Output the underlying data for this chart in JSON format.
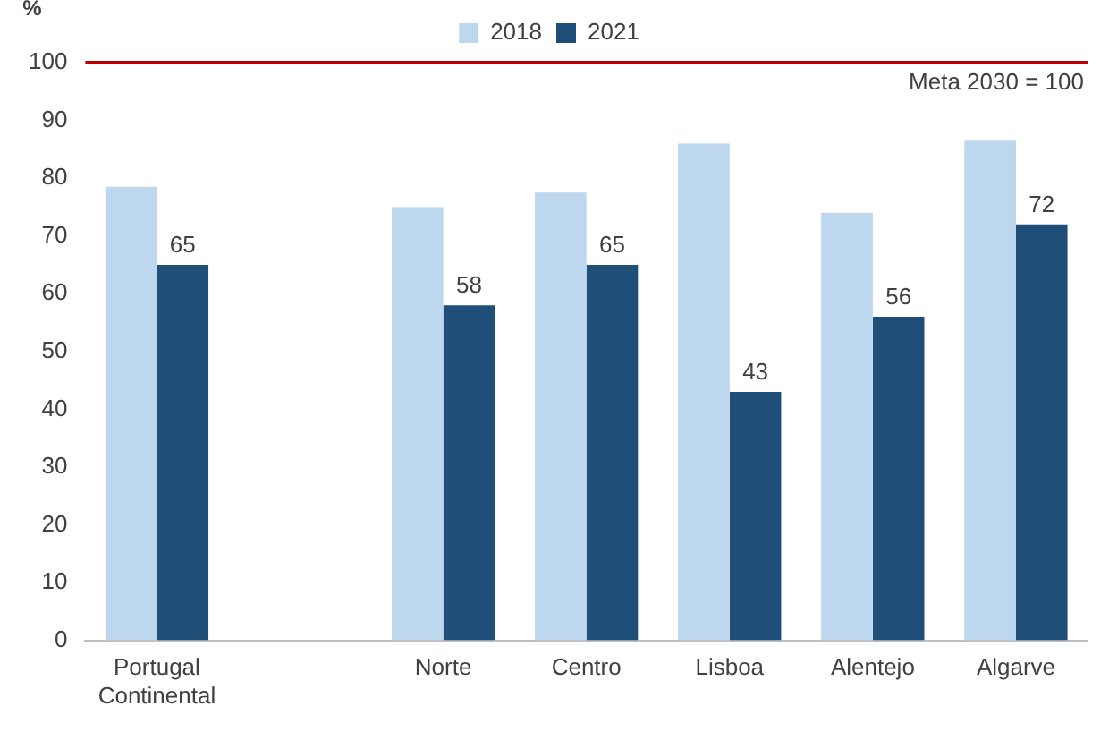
{
  "chart_data": {
    "type": "bar",
    "ylabel": "%",
    "categories": [
      "Portugal Continental",
      null,
      "Norte",
      "Centro",
      "Lisboa",
      "Alentejo",
      "Algarve"
    ],
    "series": [
      {
        "name": "2018",
        "color": "#bdd7ee",
        "values": [
          78.5,
          null,
          75,
          77.5,
          86,
          74,
          86.5
        ]
      },
      {
        "name": "2021",
        "color": "#1f4e79",
        "values": [
          65,
          null,
          58,
          65,
          43,
          56,
          72
        ],
        "value_labels": [
          "65",
          null,
          "58",
          "65",
          "43",
          "56",
          "72"
        ]
      }
    ],
    "ylim": [
      0,
      100
    ],
    "yticks": [
      0,
      10,
      20,
      30,
      40,
      50,
      60,
      70,
      80,
      90,
      100
    ],
    "grid": false,
    "legend": "top",
    "ref_lines": [
      {
        "axis": "y",
        "value": 100,
        "label": "Meta 2030 = 100",
        "color": "#c00000"
      }
    ]
  }
}
